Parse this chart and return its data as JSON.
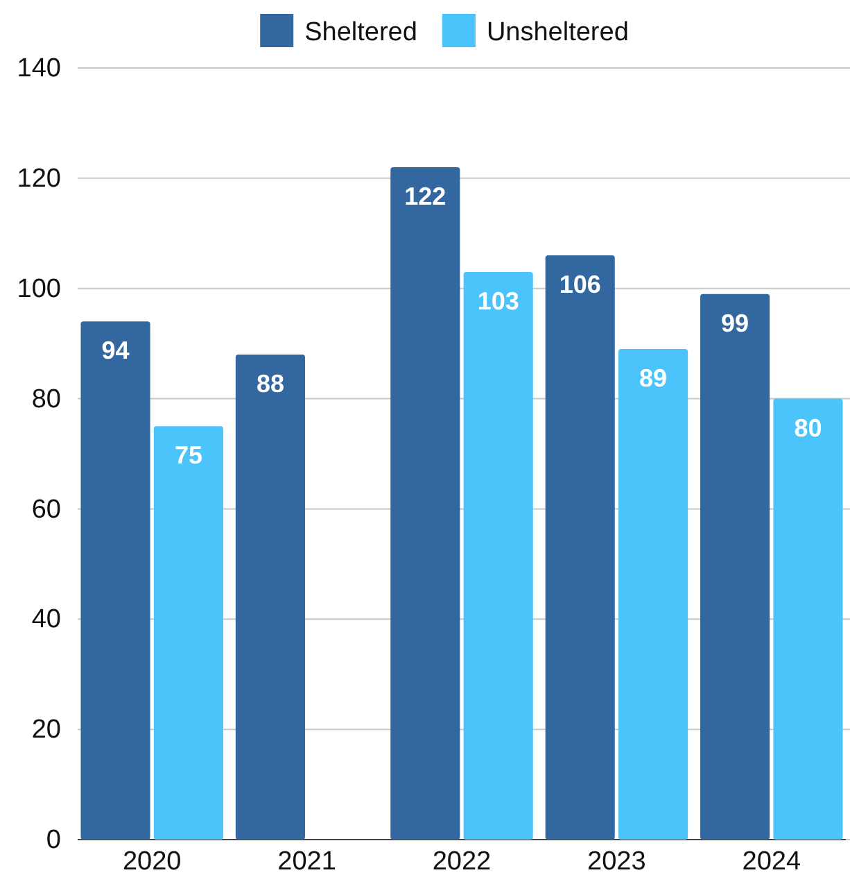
{
  "chart_data": {
    "type": "bar",
    "categories": [
      "2020",
      "2021",
      "2022",
      "2023",
      "2024"
    ],
    "series": [
      {
        "name": "Sheltered",
        "color": "#33679f",
        "values": [
          94,
          88,
          122,
          106,
          99
        ]
      },
      {
        "name": "Unsheltered",
        "color": "#4bc3fb",
        "values": [
          75,
          null,
          103,
          89,
          80
        ]
      }
    ],
    "ylim": [
      0,
      140
    ],
    "yticks": [
      0,
      20,
      40,
      60,
      80,
      100,
      120,
      140
    ],
    "grid": "y",
    "legend": "top",
    "data_labels": true
  }
}
